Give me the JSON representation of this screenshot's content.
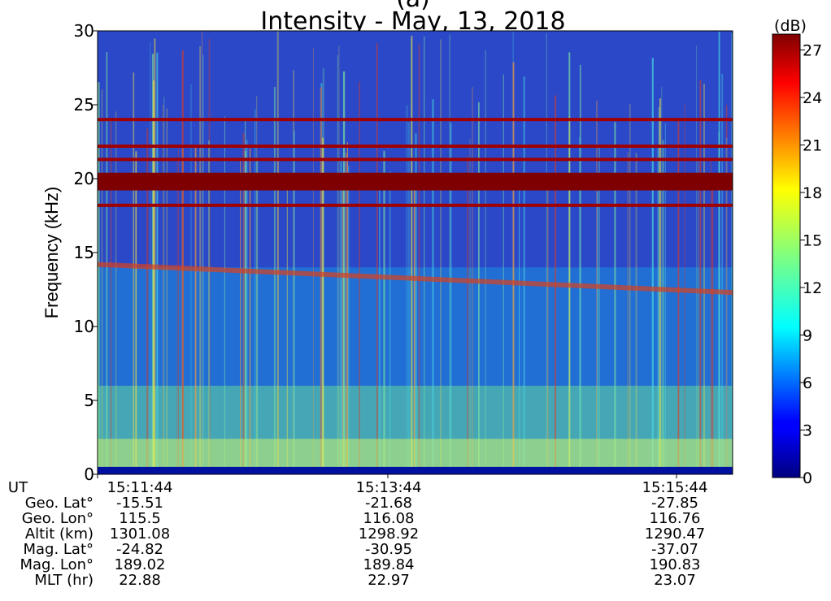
{
  "chart_data": {
    "type": "heatmap",
    "title_fragment": "(a)",
    "title": "Intensity - May, 13, 2018",
    "ylabel": "Frequency (kHz)",
    "ylim": [
      0,
      30
    ],
    "yticks": [
      0,
      5,
      10,
      15,
      20,
      25,
      30
    ],
    "x_ticks": [
      "15:11:44",
      "15:13:44",
      "15:15:44"
    ],
    "colorbar": {
      "label": "(dB)",
      "range": [
        0,
        28
      ],
      "ticks": [
        0,
        3,
        6,
        9,
        12,
        15,
        18,
        21,
        24,
        27
      ],
      "colormap": "jet"
    },
    "features": {
      "constant_lines_khz": [
        24.0,
        22.2,
        21.3,
        19.8,
        18.2
      ],
      "intense_band_khz": [
        19.2,
        20.4
      ],
      "emission_boundary_khz": {
        "start": 14.2,
        "end": 12.3
      }
    }
  },
  "ephemeris": {
    "labels": [
      "UT",
      "Geo. Lat°",
      "Geo. Lon°",
      "Altit (km)",
      "Mag. Lat°",
      "Mag. Lon°",
      "MLT (hr)"
    ],
    "columns": [
      [
        "15:11:44",
        "-15.51",
        "115.5",
        "1301.08",
        "-24.82",
        "189.02",
        "22.88"
      ],
      [
        "15:13:44",
        "-21.68",
        "116.08",
        "1298.92",
        "-30.95",
        "189.84",
        "22.97"
      ],
      [
        "15:15:44",
        "-27.85",
        "116.76",
        "1290.47",
        "-37.07",
        "190.83",
        "23.07"
      ]
    ]
  }
}
